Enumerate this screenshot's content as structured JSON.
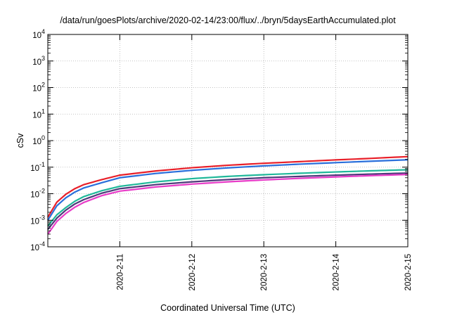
{
  "chart_data": {
    "type": "line",
    "title": "/data/run/goesPlots/archive/2020-02-14/23:00/flux/../bryn/5daysEarthAccumulated.plot",
    "xlabel": "Coordinated Universal Time (UTC)",
    "ylabel": "cSv",
    "y_scale": "log",
    "ylim": [
      0.0001,
      10000
    ],
    "y_ticks": [
      {
        "base": "10",
        "exp": "-4"
      },
      {
        "base": "10",
        "exp": "-3"
      },
      {
        "base": "10",
        "exp": "-2"
      },
      {
        "base": "10",
        "exp": "-1"
      },
      {
        "base": "10",
        "exp": "0"
      },
      {
        "base": "10",
        "exp": "1"
      },
      {
        "base": "10",
        "exp": "2"
      },
      {
        "base": "10",
        "exp": "3"
      },
      {
        "base": "10",
        "exp": "4"
      }
    ],
    "xlim": [
      "2020-02-10",
      "2020-02-15"
    ],
    "x_ticks": [
      "2020-2-11",
      "2020-2-12",
      "2020-2-13",
      "2020-2-14",
      "2020-2-15"
    ],
    "grid": true,
    "x": [
      "2020-02-10T00:00",
      "2020-02-10T03:00",
      "2020-02-10T06:00",
      "2020-02-10T09:00",
      "2020-02-10T12:00",
      "2020-02-10T18:00",
      "2020-02-11T00:00",
      "2020-02-11T12:00",
      "2020-02-12T00:00",
      "2020-02-12T12:00",
      "2020-02-13T00:00",
      "2020-02-13T12:00",
      "2020-02-14T00:00",
      "2020-02-14T12:00",
      "2020-02-15T00:00"
    ],
    "series": [
      {
        "color": "#e8202a",
        "values": [
          0.0013,
          0.0048,
          0.0095,
          0.0155,
          0.022,
          0.034,
          0.05,
          0.072,
          0.095,
          0.118,
          0.14,
          0.162,
          0.188,
          0.215,
          0.25
        ]
      },
      {
        "color": "#2a6fdb",
        "values": [
          0.001,
          0.0035,
          0.007,
          0.0115,
          0.0165,
          0.026,
          0.04,
          0.058,
          0.076,
          0.094,
          0.112,
          0.13,
          0.148,
          0.168,
          0.19
        ]
      },
      {
        "color": "#20b89a",
        "values": [
          0.0006,
          0.0016,
          0.003,
          0.0052,
          0.0078,
          0.013,
          0.019,
          0.028,
          0.037,
          0.045,
          0.052,
          0.059,
          0.066,
          0.073,
          0.08
        ]
      },
      {
        "color": "#4d3a7a",
        "values": [
          0.00045,
          0.0012,
          0.0024,
          0.0041,
          0.006,
          0.0105,
          0.0155,
          0.022,
          0.028,
          0.034,
          0.04,
          0.045,
          0.05,
          0.055,
          0.06
        ]
      },
      {
        "color": "#e83cc8",
        "values": [
          0.0003,
          0.0009,
          0.0018,
          0.0031,
          0.0047,
          0.0085,
          0.0125,
          0.018,
          0.023,
          0.028,
          0.033,
          0.038,
          0.043,
          0.048,
          0.053
        ]
      }
    ]
  }
}
